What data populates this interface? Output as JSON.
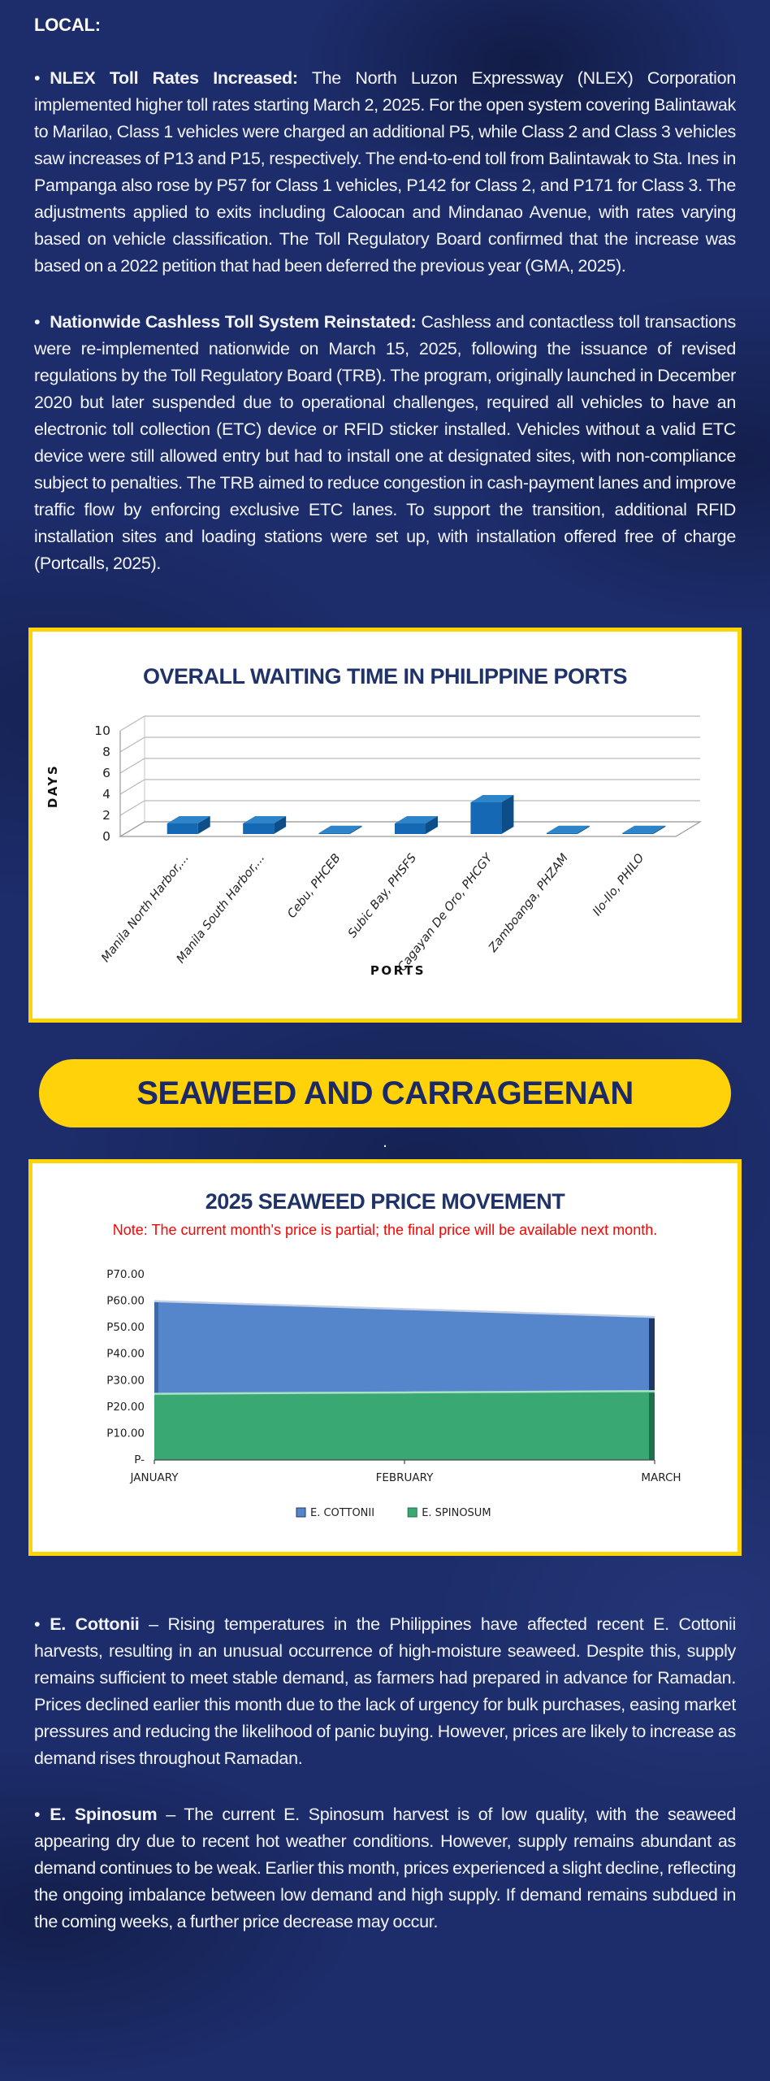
{
  "page": {
    "section_heading": "LOCAL:",
    "bullet": "•",
    "divider_dot": ".",
    "paragraphs": [
      {
        "label": "NLEX Toll Rates Increased:",
        "text": "The North Luzon Expressway (NLEX) Corporation implemented higher toll rates starting March 2, 2025. For the open system covering Balintawak to Marilao, Class 1 vehicles were charged an additional P5, while Class 2 and Class 3 vehicles saw increases of P13 and P15, respectively. The end-to-end toll from Balintawak to Sta. Ines in Pampanga also rose by P57 for Class 1 vehicles, P142 for Class 2, and P171 for Class 3. The adjustments applied to exits including Caloocan and Mindanao Avenue, with rates varying based on vehicle classification. The Toll Regulatory Board confirmed that the increase was based on a 2022 petition that had been deferred the previous year (GMA, 2025)."
      },
      {
        "label": "Nationwide Cashless Toll System Reinstated:",
        "text": "Cashless and contactless toll transactions were re-implemented nationwide on March 15, 2025, following the issuance of revised regulations by the Toll Regulatory Board (TRB). The program, originally launched in December 2020 but later suspended due to operational challenges, required all vehicles to have an electronic toll collection (ETC) device or RFID sticker installed. Vehicles without a valid ETC device were still allowed entry but had to install one at designated sites, with non-compliance subject to penalties. The TRB aimed to reduce congestion in cash-payment lanes and improve traffic flow by enforcing exclusive ETC lanes. To support the transition, additional RFID installation sites and loading stations were set up, with installation offered free of charge (Portcalls, 2025)."
      }
    ],
    "banner": "SEAWEED AND CARRAGEENAN",
    "bottom_paragraphs": [
      {
        "label": "E. Cottonii",
        "text": "– Rising temperatures in the Philippines have affected recent E. Cottonii harvests, resulting in an unusual occurrence of high-moisture seaweed. Despite this, supply remains sufficient to meet stable demand, as farmers had prepared in advance for Ramadan. Prices declined earlier this month due to the lack of urgency for bulk purchases, easing market pressures and reducing the likelihood of panic buying. However, prices are likely to increase as demand rises throughout Ramadan."
      },
      {
        "label": "E. Spinosum",
        "text": "– The current E. Spinosum harvest is of low quality, with the seaweed appearing dry due to recent hot weather conditions. However, supply remains abundant as demand continues to be weak. Earlier this month, prices experienced a slight decline, reflecting the ongoing imbalance between low demand and high supply. If demand remains subdued in the coming weeks, a further price decrease may occur."
      }
    ]
  },
  "colors": {
    "background_navy": "#1d2d6b",
    "accent_yellow": "#ffd20a",
    "title_navy": "#1f3368",
    "note_red": "#ff0000",
    "body_text": "#f5f6fa"
  },
  "chart_data": [
    {
      "type": "bar",
      "style": "3d",
      "title": "OVERALL WAITING TIME IN PHILIPPINE PORTS",
      "xlabel": "PORTS",
      "ylabel": "DAYS",
      "categories": [
        "Manila North Harbor,...",
        "Manila South Harbor,...",
        "Cebu, PHCEB",
        "Subic Bay, PHSFS",
        "Cagayan De Oro, PHCGY",
        "Zamboanga, PHZAM",
        "Ilo-Ilo, PHILO"
      ],
      "values": [
        1,
        1,
        0.1,
        1,
        3,
        0.1,
        0.1
      ],
      "ylim": [
        0,
        10
      ],
      "yticks": [
        0,
        2,
        4,
        6,
        8,
        10
      ],
      "grid": true,
      "bar_color_front": "#1569b4",
      "bar_color_top": "#2e84c8",
      "bar_color_side": "#0d4e88"
    },
    {
      "type": "area",
      "title": "2025 SEAWEED PRICE MOVEMENT",
      "note": "Note: The current month's price is partial; the final price will be available next month.",
      "note_color": "#ff0000",
      "x": [
        "JANUARY",
        "FEBRUARY",
        "MARCH"
      ],
      "series": [
        {
          "name": "E. COTTONII",
          "color": "#5585cb",
          "edge_color": "#1f3864",
          "values": [
            60,
            57,
            54
          ]
        },
        {
          "name": "E. SPINOSUM",
          "color": "#3aa873",
          "edge_color": "#20714b",
          "values": [
            25,
            25.5,
            26
          ]
        }
      ],
      "ylim": [
        0,
        70
      ],
      "ytick_labels": [
        "P-",
        "P10.00",
        "P20.00",
        "P30.00",
        "P40.00",
        "P50.00",
        "P60.00",
        "P70.00"
      ],
      "legend_position": "bottom",
      "grid": false
    }
  ]
}
